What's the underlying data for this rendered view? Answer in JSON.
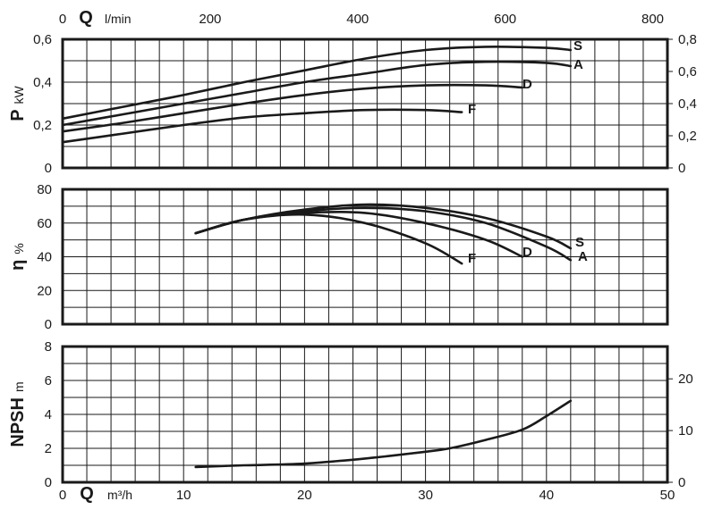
{
  "chart_data": [
    {
      "type": "line",
      "panel": "power",
      "xlabel_top": "Q",
      "xunit_top": "l/min",
      "top_ticks": [
        "0",
        "200",
        "400",
        "600",
        "800"
      ],
      "top_tick_values": [
        0,
        200,
        400,
        600,
        800
      ],
      "ylabel": "P",
      "yunit": "kW",
      "ylim": [
        0,
        0.6
      ],
      "yticks": [
        "0",
        "0,2",
        "0,4",
        "0,6"
      ],
      "ytick_values": [
        0,
        0.2,
        0.4,
        0.6
      ],
      "right_ticks": [
        "0",
        "0,2",
        "0,4",
        "0,6",
        "0,8"
      ],
      "right_tick_values": [
        0,
        0.2,
        0.4,
        0.6,
        0.8
      ],
      "right_ylim": [
        0,
        0.8
      ],
      "xlim": [
        0,
        50
      ],
      "grid": true,
      "series": [
        {
          "name": "S",
          "x": [
            0,
            5,
            10,
            15,
            20,
            25,
            30,
            35,
            40,
            42
          ],
          "y": [
            0.23,
            0.285,
            0.34,
            0.4,
            0.455,
            0.51,
            0.55,
            0.565,
            0.56,
            0.55
          ]
        },
        {
          "name": "A",
          "x": [
            0,
            5,
            10,
            15,
            20,
            25,
            30,
            35,
            40,
            42
          ],
          "y": [
            0.2,
            0.25,
            0.3,
            0.35,
            0.4,
            0.44,
            0.48,
            0.495,
            0.49,
            0.475
          ]
        },
        {
          "name": "D",
          "x": [
            0,
            5,
            10,
            15,
            20,
            25,
            30,
            35,
            38
          ],
          "y": [
            0.17,
            0.21,
            0.255,
            0.3,
            0.34,
            0.37,
            0.385,
            0.385,
            0.375
          ]
        },
        {
          "name": "F",
          "x": [
            0,
            5,
            10,
            15,
            20,
            25,
            30,
            33
          ],
          "y": [
            0.12,
            0.16,
            0.2,
            0.235,
            0.255,
            0.27,
            0.27,
            0.26
          ]
        }
      ]
    },
    {
      "type": "line",
      "panel": "efficiency",
      "ylabel": "η",
      "yunit": "%",
      "ylim": [
        0,
        80
      ],
      "yticks": [
        "0",
        "20",
        "40",
        "60",
        "80"
      ],
      "ytick_values": [
        0,
        20,
        40,
        60,
        80
      ],
      "xlim": [
        0,
        50
      ],
      "grid": true,
      "series": [
        {
          "name": "S",
          "x": [
            11,
            15,
            20,
            25,
            30,
            35,
            40,
            42
          ],
          "y": [
            54,
            62,
            68,
            71,
            69,
            63,
            52,
            45
          ]
        },
        {
          "name": "A",
          "x": [
            11,
            15,
            20,
            25,
            30,
            35,
            40,
            42
          ],
          "y": [
            54,
            62,
            67,
            69,
            67,
            60,
            46,
            38
          ]
        },
        {
          "name": "D",
          "x": [
            11,
            15,
            20,
            25,
            30,
            35,
            38
          ],
          "y": [
            54,
            62,
            66,
            66,
            60,
            50,
            40
          ]
        },
        {
          "name": "F",
          "x": [
            11,
            15,
            20,
            25,
            30,
            33
          ],
          "y": [
            54,
            62,
            65,
            60,
            48,
            36
          ]
        }
      ]
    },
    {
      "type": "line",
      "panel": "npsh",
      "ylabel": "NPSH",
      "yunit": "m",
      "ylim": [
        0,
        8
      ],
      "yticks": [
        "0",
        "2",
        "4",
        "6",
        "8"
      ],
      "ytick_values": [
        0,
        2,
        4,
        6,
        8
      ],
      "right_ticks": [
        "0",
        "10",
        "20"
      ],
      "right_tick_values": [
        0,
        10,
        20
      ],
      "right_ylim": [
        0,
        26.25
      ],
      "xlabel": "Q",
      "xunit": "m³/h",
      "xlim": [
        0,
        50
      ],
      "xticks": [
        "0",
        "10",
        "20",
        "30",
        "40",
        "50"
      ],
      "xtick_values": [
        0,
        10,
        20,
        30,
        40,
        50
      ],
      "grid": true,
      "series": [
        {
          "name": "",
          "x": [
            11,
            15,
            20,
            25,
            30,
            32,
            35,
            38,
            40,
            42
          ],
          "y": [
            0.9,
            1.0,
            1.1,
            1.4,
            1.8,
            2.0,
            2.5,
            3.1,
            3.9,
            4.8
          ]
        }
      ]
    }
  ]
}
